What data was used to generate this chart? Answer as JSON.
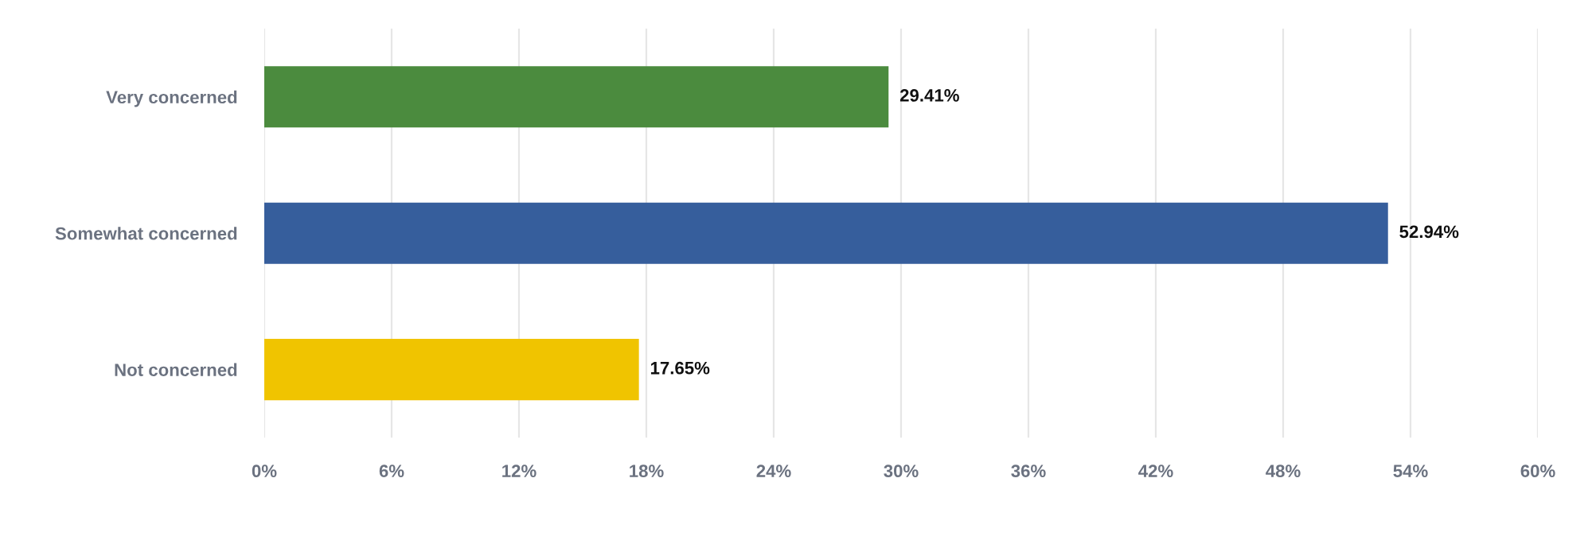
{
  "chart_data": {
    "type": "bar",
    "orientation": "horizontal",
    "categories": [
      "Very concerned",
      "Somewhat concerned",
      "Not concerned"
    ],
    "values": [
      29.41,
      52.94,
      17.65
    ],
    "colors": [
      "#4b8b3e",
      "#365e9c",
      "#f0c400"
    ],
    "value_labels": [
      "29.41%",
      "52.94%",
      "17.65%"
    ],
    "xlim": [
      0,
      60
    ],
    "xticks": [
      {
        "value": 0,
        "label": "0%"
      },
      {
        "value": 6,
        "label": "6%"
      },
      {
        "value": 12,
        "label": "12%"
      },
      {
        "value": 18,
        "label": "18%"
      },
      {
        "value": 24,
        "label": "24%"
      },
      {
        "value": 30,
        "label": "30%"
      },
      {
        "value": 36,
        "label": "36%"
      },
      {
        "value": 42,
        "label": "42%"
      },
      {
        "value": 48,
        "label": "48%"
      },
      {
        "value": 54,
        "label": "54%"
      },
      {
        "value": 60,
        "label": "60%"
      }
    ],
    "grid": "x",
    "legend": false
  }
}
